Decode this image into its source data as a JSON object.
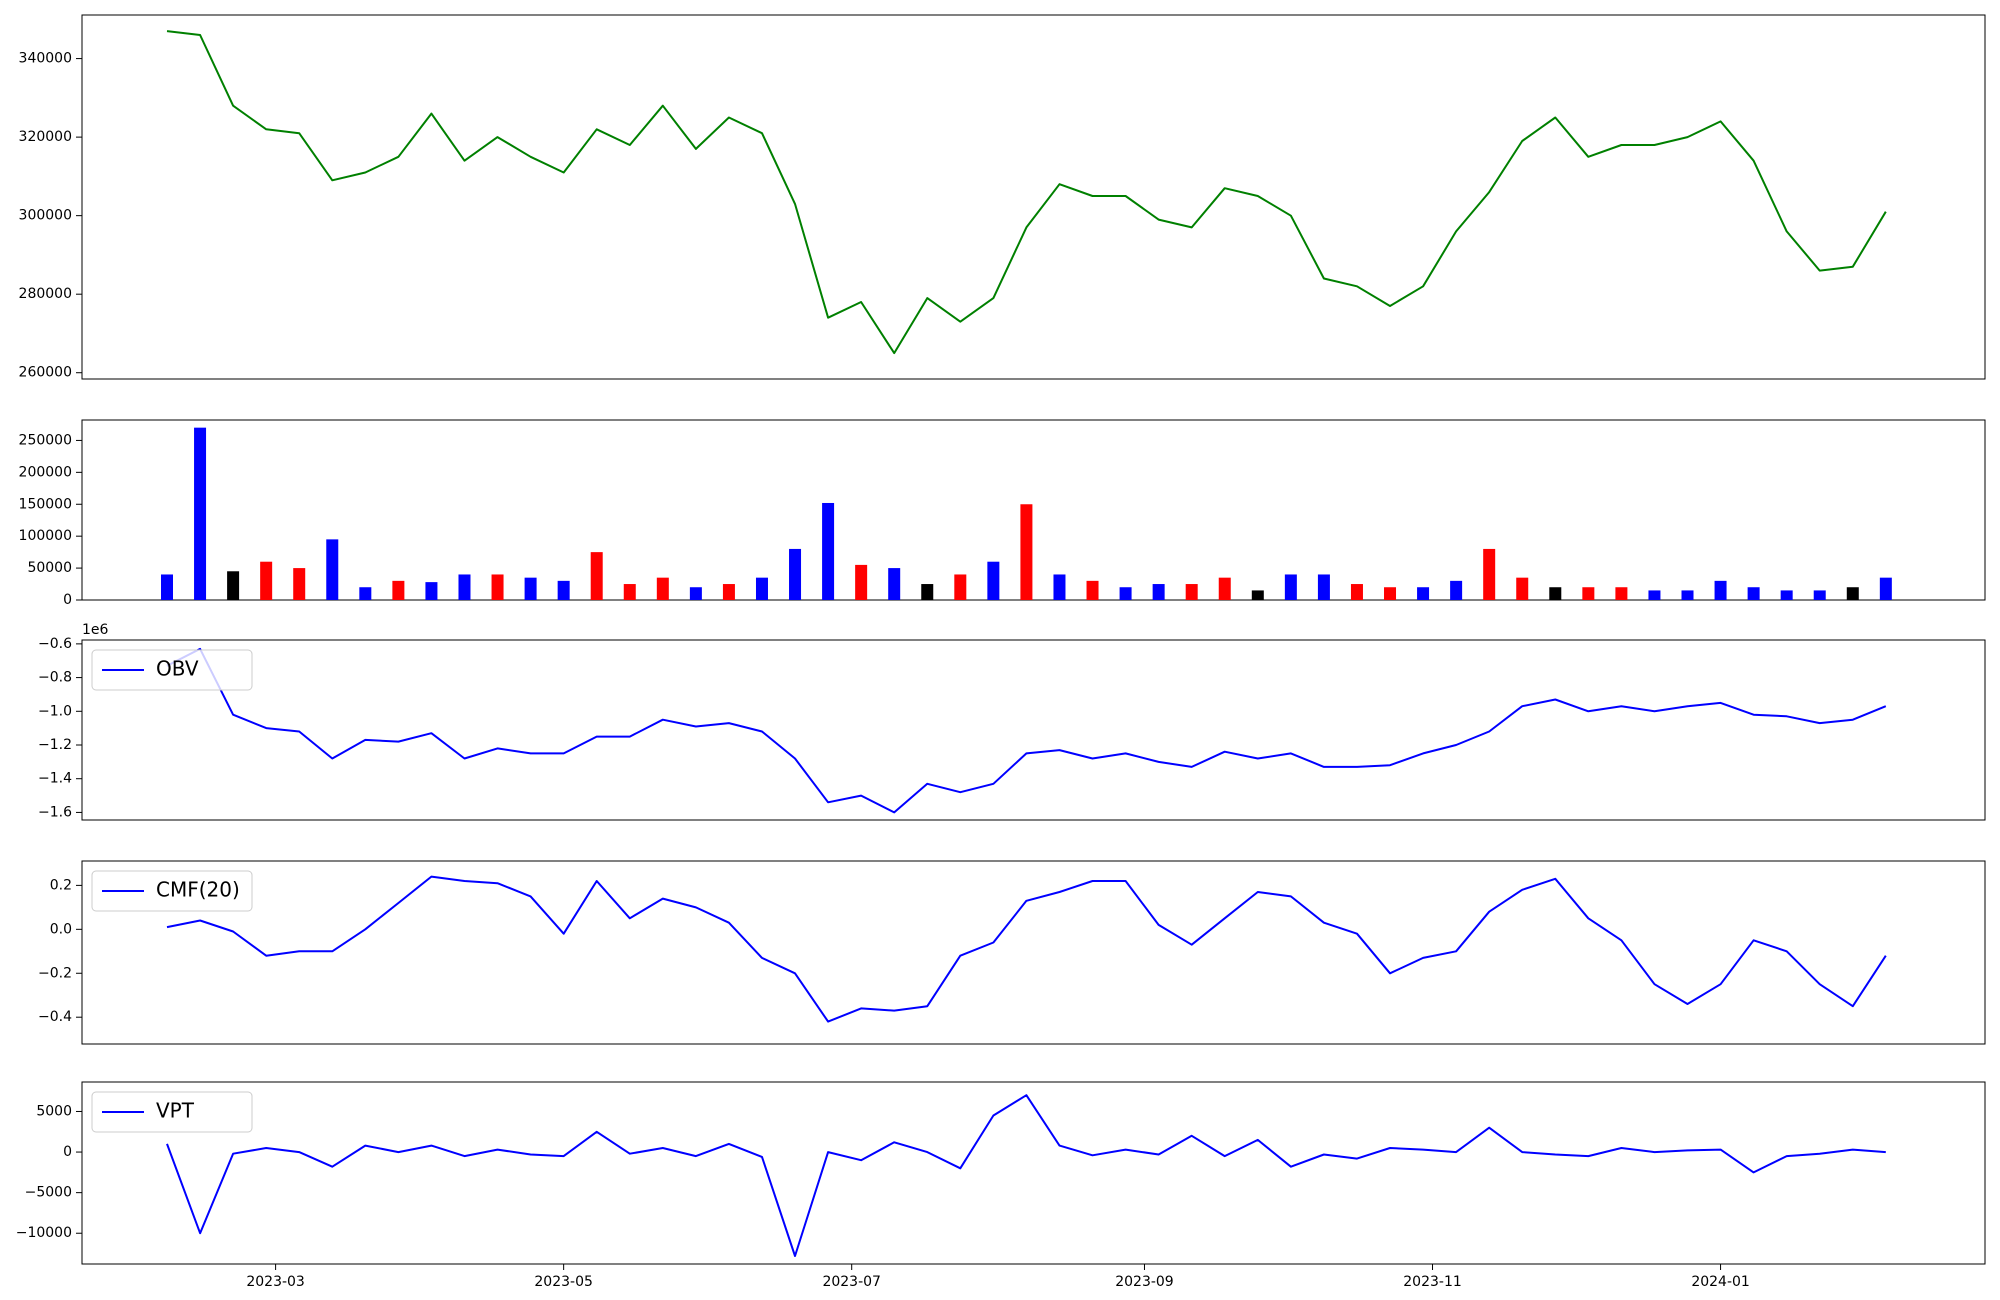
{
  "chart_data": [
    {
      "type": "line",
      "xlim": [
        "2023-01-19",
        "2024-02-26"
      ],
      "ylim": [
        258400,
        351100
      ],
      "yticks": [
        260000,
        280000,
        300000,
        320000,
        340000
      ],
      "x": [
        "2023-02-06",
        "2023-02-13",
        "2023-02-20",
        "2023-02-27",
        "2023-03-06",
        "2023-03-13",
        "2023-03-20",
        "2023-03-27",
        "2023-04-03",
        "2023-04-10",
        "2023-04-17",
        "2023-04-24",
        "2023-05-01",
        "2023-05-08",
        "2023-05-15",
        "2023-05-22",
        "2023-05-29",
        "2023-06-05",
        "2023-06-12",
        "2023-06-19",
        "2023-06-26",
        "2023-07-03",
        "2023-07-10",
        "2023-07-17",
        "2023-07-24",
        "2023-07-31",
        "2023-08-07",
        "2023-08-14",
        "2023-08-21",
        "2023-08-28",
        "2023-09-04",
        "2023-09-11",
        "2023-09-18",
        "2023-09-25",
        "2023-10-02",
        "2023-10-09",
        "2023-10-16",
        "2023-10-23",
        "2023-10-30",
        "2023-11-06",
        "2023-11-13",
        "2023-11-20",
        "2023-11-27",
        "2023-12-04",
        "2023-12-11",
        "2023-12-18",
        "2023-12-25",
        "2024-01-01",
        "2024-01-08",
        "2024-01-15",
        "2024-01-22",
        "2024-01-29",
        "2024-02-05"
      ],
      "series": [
        {
          "color": "#008000",
          "values": [
            347000,
            346000,
            328000,
            322000,
            321000,
            309000,
            311000,
            315000,
            326000,
            314000,
            320000,
            315000,
            311000,
            322000,
            318000,
            328000,
            317000,
            325000,
            321000,
            303000,
            274000,
            278000,
            265000,
            279000,
            273000,
            279000,
            297000,
            308000,
            305000,
            305000,
            299000,
            297000,
            307000,
            305000,
            300000,
            284000,
            282000,
            277000,
            282000,
            296000,
            306000,
            319000,
            325000,
            315000,
            318000,
            318000,
            320000,
            324000,
            314000,
            296000,
            286000,
            287000,
            301000
          ]
        }
      ]
    },
    {
      "type": "bar",
      "xlim": [
        "2023-01-19",
        "2024-02-26"
      ],
      "ylim": [
        0,
        282000
      ],
      "yticks": [
        0,
        50000,
        100000,
        150000,
        200000,
        250000
      ],
      "x": [
        "2023-02-06",
        "2023-02-13",
        "2023-02-20",
        "2023-02-27",
        "2023-03-06",
        "2023-03-13",
        "2023-03-20",
        "2023-03-27",
        "2023-04-03",
        "2023-04-10",
        "2023-04-17",
        "2023-04-24",
        "2023-05-01",
        "2023-05-08",
        "2023-05-15",
        "2023-05-22",
        "2023-05-29",
        "2023-06-05",
        "2023-06-12",
        "2023-06-19",
        "2023-06-26",
        "2023-07-03",
        "2023-07-10",
        "2023-07-17",
        "2023-07-24",
        "2023-07-31",
        "2023-08-07",
        "2023-08-14",
        "2023-08-21",
        "2023-08-28",
        "2023-09-04",
        "2023-09-11",
        "2023-09-18",
        "2023-09-25",
        "2023-10-02",
        "2023-10-09",
        "2023-10-16",
        "2023-10-23",
        "2023-10-30",
        "2023-11-06",
        "2023-11-13",
        "2023-11-20",
        "2023-11-27",
        "2023-12-04",
        "2023-12-11",
        "2023-12-18",
        "2023-12-25",
        "2024-01-01",
        "2024-01-08",
        "2024-01-15",
        "2024-01-22",
        "2024-01-29",
        "2024-02-05"
      ],
      "values": [
        40000,
        270000,
        45000,
        60000,
        50000,
        95000,
        20000,
        30000,
        28000,
        40000,
        40000,
        35000,
        30000,
        75000,
        25000,
        35000,
        20000,
        25000,
        35000,
        80000,
        152000,
        55000,
        50000,
        25000,
        40000,
        60000,
        150000,
        40000,
        30000,
        20000,
        25000,
        25000,
        35000,
        15000,
        40000,
        40000,
        25000,
        20000,
        20000,
        30000,
        80000,
        35000,
        20000,
        20000,
        20000,
        15000,
        15000,
        30000,
        20000,
        15000,
        15000,
        20000,
        35000
      ],
      "colors": [
        "blue",
        "blue",
        "black",
        "red",
        "red",
        "blue",
        "blue",
        "red",
        "blue",
        "blue",
        "red",
        "blue",
        "blue",
        "red",
        "red",
        "red",
        "blue",
        "red",
        "blue",
        "blue",
        "blue",
        "red",
        "blue",
        "black",
        "red",
        "blue",
        "red",
        "blue",
        "red",
        "blue",
        "blue",
        "red",
        "red",
        "black",
        "blue",
        "blue",
        "red",
        "red",
        "blue",
        "blue",
        "red",
        "red",
        "black",
        "red",
        "red",
        "blue",
        "blue",
        "blue",
        "blue",
        "blue",
        "blue",
        "black",
        "blue"
      ]
    },
    {
      "type": "line",
      "xlim": [
        "2023-01-19",
        "2024-02-26"
      ],
      "ylim": [
        -1645000,
        -577000
      ],
      "offset_text": "1e6",
      "legend": "upper left",
      "yticks": [
        {
          "value": -1600000,
          "label": "−1.6"
        },
        {
          "value": -1400000,
          "label": "−1.4"
        },
        {
          "value": -1200000,
          "label": "−1.2"
        },
        {
          "value": -1000000,
          "label": "−1.0"
        },
        {
          "value": -800000,
          "label": "−0.8"
        },
        {
          "value": -600000,
          "label": "−0.6"
        }
      ],
      "x": [
        "2023-02-06",
        "2023-02-13",
        "2023-02-20",
        "2023-02-27",
        "2023-03-06",
        "2023-03-13",
        "2023-03-20",
        "2023-03-27",
        "2023-04-03",
        "2023-04-10",
        "2023-04-17",
        "2023-04-24",
        "2023-05-01",
        "2023-05-08",
        "2023-05-15",
        "2023-05-22",
        "2023-05-29",
        "2023-06-05",
        "2023-06-12",
        "2023-06-19",
        "2023-06-26",
        "2023-07-03",
        "2023-07-10",
        "2023-07-17",
        "2023-07-24",
        "2023-07-31",
        "2023-08-07",
        "2023-08-14",
        "2023-08-21",
        "2023-08-28",
        "2023-09-04",
        "2023-09-11",
        "2023-09-18",
        "2023-09-25",
        "2023-10-02",
        "2023-10-09",
        "2023-10-16",
        "2023-10-23",
        "2023-10-30",
        "2023-11-06",
        "2023-11-13",
        "2023-11-20",
        "2023-11-27",
        "2023-12-04",
        "2023-12-11",
        "2023-12-18",
        "2023-12-25",
        "2024-01-01",
        "2024-01-08",
        "2024-01-15",
        "2024-01-22",
        "2024-01-29",
        "2024-02-05"
      ],
      "series": [
        {
          "name": "OBV",
          "color": "#0000ff",
          "values": [
            -730000,
            -630000,
            -1020000,
            -1100000,
            -1120000,
            -1280000,
            -1170000,
            -1180000,
            -1130000,
            -1280000,
            -1220000,
            -1250000,
            -1250000,
            -1150000,
            -1150000,
            -1050000,
            -1090000,
            -1070000,
            -1120000,
            -1280000,
            -1540000,
            -1500000,
            -1600000,
            -1430000,
            -1480000,
            -1430000,
            -1250000,
            -1230000,
            -1280000,
            -1250000,
            -1300000,
            -1330000,
            -1240000,
            -1280000,
            -1250000,
            -1330000,
            -1330000,
            -1320000,
            -1250000,
            -1200000,
            -1120000,
            -970000,
            -930000,
            -1000000,
            -970000,
            -1000000,
            -970000,
            -950000,
            -1020000,
            -1030000,
            -1070000,
            -1050000,
            -970000
          ]
        }
      ]
    },
    {
      "type": "line",
      "xlim": [
        "2023-01-19",
        "2024-02-26"
      ],
      "ylim": [
        -0.522,
        0.311
      ],
      "legend": "upper left",
      "yticks": [
        {
          "value": -0.4,
          "label": "−0.4"
        },
        {
          "value": -0.2,
          "label": "−0.2"
        },
        {
          "value": 0,
          "label": "0.0"
        },
        0.2
      ],
      "x": [
        "2023-02-06",
        "2023-02-13",
        "2023-02-20",
        "2023-02-27",
        "2023-03-06",
        "2023-03-13",
        "2023-03-20",
        "2023-03-27",
        "2023-04-03",
        "2023-04-10",
        "2023-04-17",
        "2023-04-24",
        "2023-05-01",
        "2023-05-08",
        "2023-05-15",
        "2023-05-22",
        "2023-05-29",
        "2023-06-05",
        "2023-06-12",
        "2023-06-19",
        "2023-06-26",
        "2023-07-03",
        "2023-07-10",
        "2023-07-17",
        "2023-07-24",
        "2023-07-31",
        "2023-08-07",
        "2023-08-14",
        "2023-08-21",
        "2023-08-28",
        "2023-09-04",
        "2023-09-11",
        "2023-09-18",
        "2023-09-25",
        "2023-10-02",
        "2023-10-09",
        "2023-10-16",
        "2023-10-23",
        "2023-10-30",
        "2023-11-06",
        "2023-11-13",
        "2023-11-20",
        "2023-11-27",
        "2023-12-04",
        "2023-12-11",
        "2023-12-18",
        "2023-12-25",
        "2024-01-01",
        "2024-01-08",
        "2024-01-15",
        "2024-01-22",
        "2024-01-29",
        "2024-02-05"
      ],
      "series": [
        {
          "name": "CMF(20)",
          "color": "#0000ff",
          "values": [
            0.01,
            0.04,
            -0.01,
            -0.12,
            -0.1,
            -0.1,
            0,
            0.12,
            0.24,
            0.22,
            0.21,
            0.15,
            -0.02,
            0.22,
            0.05,
            0.14,
            0.1,
            0.03,
            -0.13,
            -0.2,
            -0.42,
            -0.36,
            -0.37,
            -0.35,
            -0.12,
            -0.06,
            0.13,
            0.17,
            0.22,
            0.22,
            0.02,
            -0.07,
            0.05,
            0.17,
            0.15,
            0.03,
            -0.02,
            -0.2,
            -0.13,
            -0.1,
            0.08,
            0.18,
            0.23,
            0.05,
            -0.05,
            -0.25,
            -0.34,
            -0.25,
            -0.05,
            -0.1,
            -0.25,
            -0.35,
            -0.12
          ]
        }
      ]
    },
    {
      "type": "line",
      "xlim": [
        "2023-01-19",
        "2024-02-26"
      ],
      "ylim": [
        -13790,
        8630
      ],
      "legend": "upper left",
      "yticks": [
        {
          "value": -10000,
          "label": "−10000"
        },
        {
          "value": -5000,
          "label": "−5000"
        },
        0,
        5000
      ],
      "xticks": [
        {
          "value": "2023-03-01",
          "label": "2023-03"
        },
        {
          "value": "2023-05-01",
          "label": "2023-05"
        },
        {
          "value": "2023-07-01",
          "label": "2023-07"
        },
        {
          "value": "2023-09-01",
          "label": "2023-09"
        },
        {
          "value": "2023-11-01",
          "label": "2023-11"
        },
        {
          "value": "2024-01-01",
          "label": "2024-01"
        }
      ],
      "x": [
        "2023-02-06",
        "2023-02-13",
        "2023-02-20",
        "2023-02-27",
        "2023-03-06",
        "2023-03-13",
        "2023-03-20",
        "2023-03-27",
        "2023-04-03",
        "2023-04-10",
        "2023-04-17",
        "2023-04-24",
        "2023-05-01",
        "2023-05-08",
        "2023-05-15",
        "2023-05-22",
        "2023-05-29",
        "2023-06-05",
        "2023-06-12",
        "2023-06-19",
        "2023-06-26",
        "2023-07-03",
        "2023-07-10",
        "2023-07-17",
        "2023-07-24",
        "2023-07-31",
        "2023-08-07",
        "2023-08-14",
        "2023-08-21",
        "2023-08-28",
        "2023-09-04",
        "2023-09-11",
        "2023-09-18",
        "2023-09-25",
        "2023-10-02",
        "2023-10-09",
        "2023-10-16",
        "2023-10-23",
        "2023-10-30",
        "2023-11-06",
        "2023-11-13",
        "2023-11-20",
        "2023-11-27",
        "2023-12-04",
        "2023-12-11",
        "2023-12-18",
        "2023-12-25",
        "2024-01-01",
        "2024-01-08",
        "2024-01-15",
        "2024-01-22",
        "2024-01-29",
        "2024-02-05"
      ],
      "series": [
        {
          "name": "VPT",
          "color": "#0000ff",
          "values": [
            1000,
            -10000,
            -200,
            500,
            0,
            -1800,
            800,
            0,
            800,
            -500,
            300,
            -300,
            -500,
            2500,
            -200,
            500,
            -500,
            1000,
            -600,
            -12800,
            0,
            -1000,
            1200,
            0,
            -2000,
            4500,
            7000,
            800,
            -400,
            300,
            -300,
            2000,
            -500,
            1500,
            -1800,
            -300,
            -800,
            500,
            300,
            0,
            3000,
            0,
            -300,
            -500,
            500,
            0,
            200,
            300,
            -2500,
            -500,
            -200,
            300,
            0
          ]
        }
      ]
    }
  ]
}
